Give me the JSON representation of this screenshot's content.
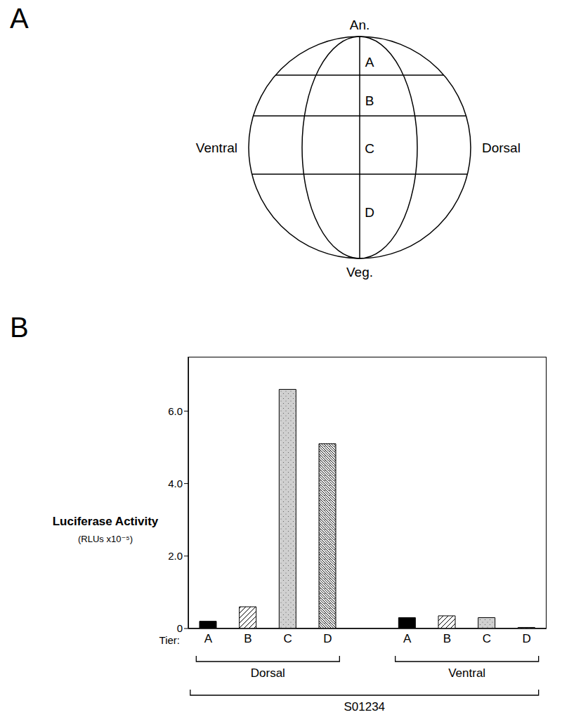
{
  "diagram": {
    "panel_label": "A",
    "poles": {
      "top": "An.",
      "bottom": "Veg."
    },
    "sides": {
      "left": "Ventral",
      "right": "Dorsal"
    },
    "tiers": [
      "A",
      "B",
      "C",
      "D"
    ]
  },
  "chart_data": {
    "type": "bar",
    "panel_label": "B",
    "ylabel": "Luciferase Activity",
    "ylabel_units": "(RLUs x10⁻⁵)",
    "xlabel": "Tier:",
    "categories": [
      "A",
      "B",
      "C",
      "D",
      "A",
      "B",
      "C",
      "D"
    ],
    "values": [
      0.2,
      0.6,
      6.6,
      5.1,
      0.3,
      0.35,
      0.3,
      0.03
    ],
    "colors": [
      "#000000",
      "#ffffff",
      "#d0d0d0",
      "#ffffff",
      "#000000",
      "#ffffff",
      "#d0d0d0",
      "#ffffff"
    ],
    "groups": [
      {
        "label": "Dorsal",
        "count": 4
      },
      {
        "label": "Ventral",
        "count": 4
      }
    ],
    "group_label": "S01234",
    "ylim": [
      0,
      7.5
    ],
    "yticks": [
      0,
      {
        "value": 2,
        "label": "2.0"
      },
      {
        "value": 4,
        "label": "4.0"
      },
      {
        "value": 6,
        "label": "6.0"
      }
    ],
    "grid": false
  }
}
